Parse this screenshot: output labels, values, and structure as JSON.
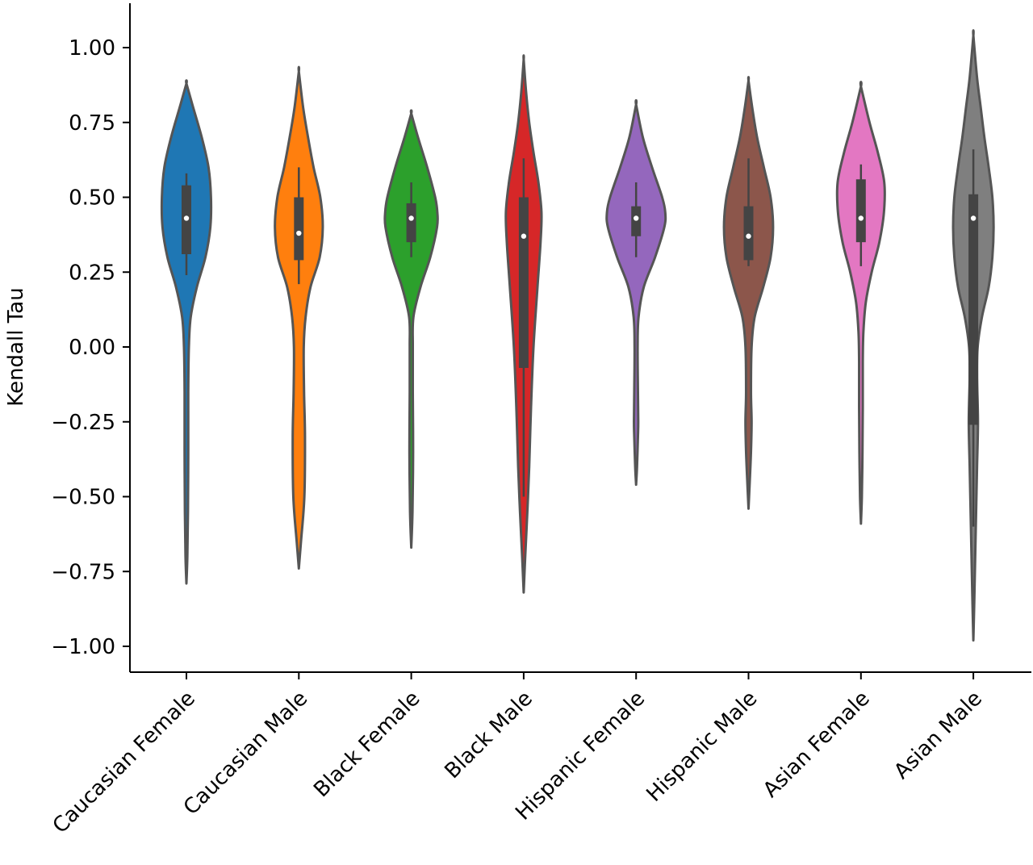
{
  "chart_data": {
    "type": "violin",
    "ylabel": "Kendall Tau",
    "xlabel": "",
    "ylim": [
      -1.15,
      1.15
    ],
    "yticks": [
      1.0,
      0.75,
      0.5,
      0.25,
      0.0,
      -0.25,
      -0.5,
      -0.75,
      -1.0
    ],
    "ytick_labels": [
      "1.00",
      "0.75",
      "0.50",
      "0.25",
      "0.00",
      "−0.25",
      "−0.50",
      "−0.75",
      "−1.00"
    ],
    "grid": false,
    "categories": [
      "Caucasian Female",
      "Caucasian Male",
      "Black Female",
      "Black Male",
      "Hispanic Female",
      "Hispanic Male",
      "Asian Female",
      "Asian Male"
    ],
    "colors": [
      "#1f77b4",
      "#ff7f0e",
      "#2ca02c",
      "#d62728",
      "#9467bd",
      "#8c564b",
      "#e377c2",
      "#7f7f7f"
    ],
    "violins": [
      {
        "min": -0.79,
        "max": 0.88,
        "q1": 0.31,
        "median": 0.43,
        "q3": 0.54,
        "whisker_low": 0.24,
        "whisker_high": 0.58,
        "density": [
          [
            -0.79,
            0.0
          ],
          [
            -0.7,
            0.03
          ],
          [
            -0.55,
            0.05
          ],
          [
            -0.35,
            0.06
          ],
          [
            -0.15,
            0.06
          ],
          [
            0.0,
            0.08
          ],
          [
            0.1,
            0.14
          ],
          [
            0.2,
            0.34
          ],
          [
            0.3,
            0.62
          ],
          [
            0.4,
            0.78
          ],
          [
            0.5,
            0.8
          ],
          [
            0.6,
            0.72
          ],
          [
            0.7,
            0.5
          ],
          [
            0.8,
            0.22
          ],
          [
            0.88,
            0.0
          ]
        ]
      },
      {
        "min": -0.74,
        "max": 0.92,
        "q1": 0.29,
        "median": 0.38,
        "q3": 0.5,
        "whisker_low": 0.21,
        "whisker_high": 0.6,
        "density": [
          [
            -0.74,
            0.0
          ],
          [
            -0.65,
            0.07
          ],
          [
            -0.5,
            0.18
          ],
          [
            -0.3,
            0.2
          ],
          [
            -0.15,
            0.17
          ],
          [
            0.0,
            0.16
          ],
          [
            0.1,
            0.22
          ],
          [
            0.2,
            0.38
          ],
          [
            0.3,
            0.68
          ],
          [
            0.4,
            0.78
          ],
          [
            0.5,
            0.7
          ],
          [
            0.6,
            0.48
          ],
          [
            0.7,
            0.3
          ],
          [
            0.8,
            0.14
          ],
          [
            0.92,
            0.0
          ]
        ]
      },
      {
        "min": -0.67,
        "max": 0.78,
        "q1": 0.35,
        "median": 0.43,
        "q3": 0.48,
        "whisker_low": 0.3,
        "whisker_high": 0.55,
        "density": [
          [
            -0.67,
            0.0
          ],
          [
            -0.55,
            0.04
          ],
          [
            -0.35,
            0.06
          ],
          [
            -0.15,
            0.05
          ],
          [
            0.0,
            0.05
          ],
          [
            0.1,
            0.07
          ],
          [
            0.2,
            0.3
          ],
          [
            0.3,
            0.62
          ],
          [
            0.4,
            0.84
          ],
          [
            0.45,
            0.85
          ],
          [
            0.5,
            0.78
          ],
          [
            0.6,
            0.52
          ],
          [
            0.7,
            0.22
          ],
          [
            0.78,
            0.0
          ]
        ]
      },
      {
        "min": -0.82,
        "max": 0.96,
        "q1": -0.07,
        "median": 0.37,
        "q3": 0.5,
        "whisker_low": -0.5,
        "whisker_high": 0.63,
        "density": [
          [
            -0.82,
            0.0
          ],
          [
            -0.7,
            0.05
          ],
          [
            -0.55,
            0.12
          ],
          [
            -0.4,
            0.18
          ],
          [
            -0.2,
            0.24
          ],
          [
            0.0,
            0.32
          ],
          [
            0.2,
            0.45
          ],
          [
            0.35,
            0.55
          ],
          [
            0.45,
            0.58
          ],
          [
            0.55,
            0.48
          ],
          [
            0.65,
            0.32
          ],
          [
            0.75,
            0.18
          ],
          [
            0.85,
            0.08
          ],
          [
            0.96,
            0.0
          ]
        ]
      },
      {
        "min": -0.46,
        "max": 0.81,
        "q1": 0.37,
        "median": 0.43,
        "q3": 0.47,
        "whisker_low": 0.3,
        "whisker_high": 0.55,
        "density": [
          [
            -0.46,
            0.0
          ],
          [
            -0.4,
            0.03
          ],
          [
            -0.3,
            0.06
          ],
          [
            -0.25,
            0.07
          ],
          [
            -0.15,
            0.06
          ],
          [
            0.0,
            0.05
          ],
          [
            0.1,
            0.08
          ],
          [
            0.2,
            0.25
          ],
          [
            0.3,
            0.62
          ],
          [
            0.4,
            0.92
          ],
          [
            0.45,
            0.95
          ],
          [
            0.5,
            0.85
          ],
          [
            0.6,
            0.52
          ],
          [
            0.7,
            0.22
          ],
          [
            0.81,
            0.0
          ]
        ]
      },
      {
        "min": -0.54,
        "max": 0.89,
        "q1": 0.29,
        "median": 0.37,
        "q3": 0.47,
        "whisker_low": 0.27,
        "whisker_high": 0.63,
        "density": [
          [
            -0.54,
            0.0
          ],
          [
            -0.45,
            0.04
          ],
          [
            -0.35,
            0.08
          ],
          [
            -0.25,
            0.1
          ],
          [
            -0.15,
            0.08
          ],
          [
            0.0,
            0.1
          ],
          [
            0.1,
            0.2
          ],
          [
            0.2,
            0.48
          ],
          [
            0.3,
            0.72
          ],
          [
            0.4,
            0.8
          ],
          [
            0.5,
            0.72
          ],
          [
            0.6,
            0.5
          ],
          [
            0.7,
            0.28
          ],
          [
            0.8,
            0.12
          ],
          [
            0.89,
            0.0
          ]
        ]
      },
      {
        "min": -0.59,
        "max": 0.87,
        "q1": 0.35,
        "median": 0.43,
        "q3": 0.56,
        "whisker_low": 0.27,
        "whisker_high": 0.61,
        "density": [
          [
            -0.59,
            0.0
          ],
          [
            -0.5,
            0.03
          ],
          [
            -0.35,
            0.05
          ],
          [
            -0.2,
            0.06
          ],
          [
            -0.05,
            0.06
          ],
          [
            0.05,
            0.08
          ],
          [
            0.15,
            0.16
          ],
          [
            0.25,
            0.35
          ],
          [
            0.35,
            0.6
          ],
          [
            0.45,
            0.75
          ],
          [
            0.55,
            0.76
          ],
          [
            0.65,
            0.55
          ],
          [
            0.75,
            0.28
          ],
          [
            0.87,
            0.0
          ]
        ]
      },
      {
        "min": -0.98,
        "max": 1.04,
        "q1": -0.26,
        "median": 0.43,
        "q3": 0.51,
        "whisker_low": -0.6,
        "whisker_high": 0.66,
        "density": [
          [
            -0.98,
            0.0
          ],
          [
            -0.85,
            0.03
          ],
          [
            -0.7,
            0.06
          ],
          [
            -0.55,
            0.09
          ],
          [
            -0.4,
            0.12
          ],
          [
            -0.25,
            0.15
          ],
          [
            -0.1,
            0.12
          ],
          [
            0.0,
            0.14
          ],
          [
            0.1,
            0.28
          ],
          [
            0.2,
            0.5
          ],
          [
            0.3,
            0.62
          ],
          [
            0.4,
            0.66
          ],
          [
            0.5,
            0.62
          ],
          [
            0.6,
            0.5
          ],
          [
            0.7,
            0.36
          ],
          [
            0.8,
            0.24
          ],
          [
            0.9,
            0.12
          ],
          [
            1.04,
            0.0
          ]
        ]
      }
    ]
  }
}
